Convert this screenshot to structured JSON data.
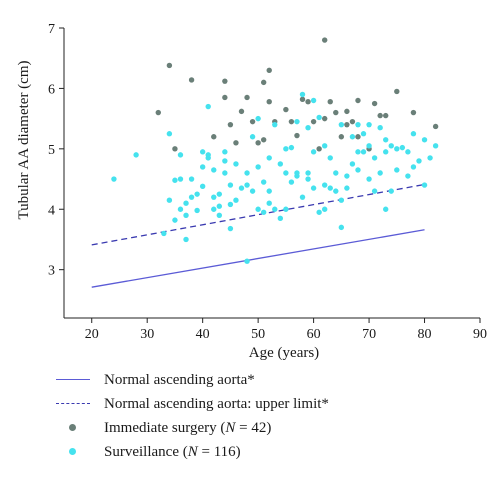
{
  "chart_data": {
    "type": "scatter",
    "title": "",
    "xlabel": "Age (years)",
    "ylabel": "Tubular AA diameter (cm)",
    "xlim": [
      15,
      90
    ],
    "ylim": [
      2.2,
      7
    ],
    "xticks": [
      "20",
      "30",
      "40",
      "50",
      "60",
      "70",
      "80",
      "90"
    ],
    "yticks": [
      "3",
      "4",
      "5",
      "6",
      "7"
    ],
    "grid": false,
    "legend_position": "below",
    "lines": [
      {
        "name": "Normal ascending aorta*",
        "style": "solid",
        "color": "#5b5bd6",
        "points": [
          [
            20,
            2.71
          ],
          [
            80,
            3.66
          ]
        ]
      },
      {
        "name": "Normal ascending aorta: upper limit*",
        "style": "dashed",
        "color": "#3a3ab0",
        "points": [
          [
            20,
            3.41
          ],
          [
            80,
            4.41
          ]
        ]
      }
    ],
    "series": [
      {
        "name": "Immediate surgery (N = 42)",
        "color": "#6a7f78",
        "points": [
          [
            32,
            5.6
          ],
          [
            34,
            6.38
          ],
          [
            35,
            5.0
          ],
          [
            38,
            6.14
          ],
          [
            42,
            5.2
          ],
          [
            44,
            6.12
          ],
          [
            44,
            5.85
          ],
          [
            45,
            5.4
          ],
          [
            46,
            5.1
          ],
          [
            47,
            5.62
          ],
          [
            48,
            5.85
          ],
          [
            49,
            5.45
          ],
          [
            50,
            5.1
          ],
          [
            51,
            6.1
          ],
          [
            51,
            5.15
          ],
          [
            52,
            6.3
          ],
          [
            52,
            5.78
          ],
          [
            53,
            5.45
          ],
          [
            55,
            5.65
          ],
          [
            56,
            5.45
          ],
          [
            57,
            5.22
          ],
          [
            58,
            5.82
          ],
          [
            59,
            5.78
          ],
          [
            60,
            5.45
          ],
          [
            61,
            5.0
          ],
          [
            62,
            6.8
          ],
          [
            62,
            5.5
          ],
          [
            63,
            5.78
          ],
          [
            64,
            5.6
          ],
          [
            65,
            5.2
          ],
          [
            66,
            5.4
          ],
          [
            66,
            5.62
          ],
          [
            67,
            5.45
          ],
          [
            68,
            5.8
          ],
          [
            68,
            5.2
          ],
          [
            70,
            5.0
          ],
          [
            71,
            5.75
          ],
          [
            72,
            5.55
          ],
          [
            73,
            5.55
          ],
          [
            75,
            5.95
          ],
          [
            78,
            5.6
          ],
          [
            82,
            5.37
          ]
        ]
      },
      {
        "name": "Surveillance (N = 116)",
        "color": "#45e2ee",
        "points": [
          [
            24,
            4.5
          ],
          [
            28,
            4.9
          ],
          [
            33,
            3.6
          ],
          [
            34,
            4.15
          ],
          [
            34,
            5.25
          ],
          [
            35,
            3.82
          ],
          [
            35,
            4.48
          ],
          [
            36,
            4.0
          ],
          [
            36,
            4.9
          ],
          [
            36,
            4.5
          ],
          [
            37,
            3.9
          ],
          [
            37,
            4.1
          ],
          [
            37,
            3.5
          ],
          [
            38,
            4.2
          ],
          [
            38,
            4.5
          ],
          [
            39,
            4.25
          ],
          [
            39,
            3.98
          ],
          [
            40,
            4.95
          ],
          [
            40,
            4.7
          ],
          [
            40,
            4.38
          ],
          [
            41,
            4.85
          ],
          [
            41,
            5.7
          ],
          [
            41,
            4.9
          ],
          [
            42,
            4.2
          ],
          [
            42,
            4.0
          ],
          [
            42,
            4.65
          ],
          [
            43,
            4.25
          ],
          [
            43,
            3.9
          ],
          [
            44,
            4.8
          ],
          [
            44,
            4.6
          ],
          [
            44,
            4.95
          ],
          [
            45,
            4.4
          ],
          [
            45,
            4.08
          ],
          [
            45,
            3.68
          ],
          [
            46,
            4.75
          ],
          [
            46,
            4.15
          ],
          [
            47,
            4.35
          ],
          [
            48,
            4.4
          ],
          [
            48,
            4.6
          ],
          [
            48,
            3.14
          ],
          [
            49,
            4.3
          ],
          [
            49,
            5.2
          ],
          [
            50,
            4.0
          ],
          [
            50,
            5.5
          ],
          [
            50,
            4.7
          ],
          [
            51,
            3.95
          ],
          [
            51,
            4.45
          ],
          [
            52,
            4.3
          ],
          [
            52,
            4.85
          ],
          [
            52,
            4.1
          ],
          [
            53,
            5.4
          ],
          [
            53,
            4.0
          ],
          [
            54,
            3.85
          ],
          [
            54,
            4.75
          ],
          [
            55,
            4.6
          ],
          [
            55,
            4.0
          ],
          [
            56,
            5.02
          ],
          [
            56,
            4.45
          ],
          [
            57,
            5.45
          ],
          [
            57,
            4.6
          ],
          [
            58,
            5.9
          ],
          [
            58,
            4.2
          ],
          [
            59,
            5.35
          ],
          [
            59,
            4.5
          ],
          [
            59,
            4.6
          ],
          [
            60,
            5.8
          ],
          [
            60,
            4.35
          ],
          [
            60,
            4.95
          ],
          [
            61,
            3.95
          ],
          [
            61,
            5.52
          ],
          [
            62,
            4.0
          ],
          [
            62,
            5.05
          ],
          [
            63,
            4.35
          ],
          [
            63,
            4.85
          ],
          [
            64,
            4.6
          ],
          [
            64,
            4.3
          ],
          [
            65,
            3.7
          ],
          [
            65,
            4.15
          ],
          [
            65,
            5.4
          ],
          [
            66,
            4.55
          ],
          [
            66,
            4.35
          ],
          [
            67,
            5.2
          ],
          [
            67,
            4.75
          ],
          [
            68,
            5.4
          ],
          [
            68,
            4.95
          ],
          [
            68,
            4.65
          ],
          [
            69,
            5.25
          ],
          [
            69,
            4.95
          ],
          [
            70,
            4.5
          ],
          [
            70,
            5.05
          ],
          [
            70,
            5.4
          ],
          [
            71,
            4.3
          ],
          [
            71,
            4.85
          ],
          [
            72,
            5.35
          ],
          [
            72,
            4.6
          ],
          [
            73,
            5.15
          ],
          [
            73,
            4.0
          ],
          [
            73,
            4.95
          ],
          [
            74,
            4.3
          ],
          [
            74,
            5.05
          ],
          [
            75,
            4.65
          ],
          [
            75,
            5.0
          ],
          [
            76,
            5.02
          ],
          [
            77,
            4.95
          ],
          [
            77,
            4.55
          ],
          [
            78,
            5.25
          ],
          [
            78,
            4.7
          ],
          [
            79,
            4.8
          ],
          [
            80,
            4.4
          ],
          [
            80,
            5.15
          ],
          [
            81,
            4.85
          ],
          [
            82,
            5.05
          ],
          [
            62,
            4.4
          ],
          [
            57,
            4.55
          ],
          [
            55,
            5.0
          ],
          [
            43,
            4.05
          ]
        ]
      }
    ]
  },
  "legend": {
    "items": [
      {
        "key": "solid",
        "pre": "Normal ascending aorta*",
        "italic": "",
        "post": ""
      },
      {
        "key": "dashed",
        "pre": "Normal ascending aorta: upper limit*",
        "italic": "",
        "post": ""
      },
      {
        "key": "surgery",
        "pre": "Immediate surgery (",
        "italic": "N",
        "post": " = 42)"
      },
      {
        "key": "surveillance",
        "pre": "Surveillance (",
        "italic": "N",
        "post": " = 116)"
      }
    ]
  }
}
